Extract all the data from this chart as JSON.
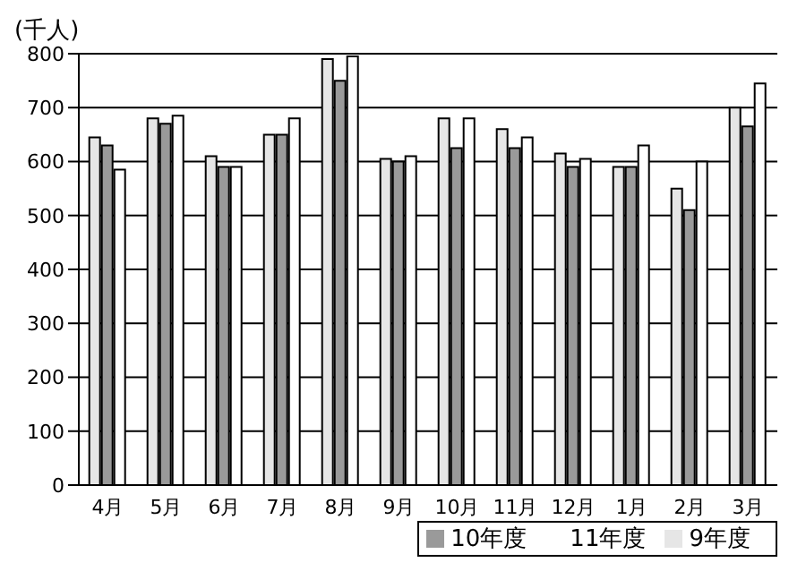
{
  "chart_data": {
    "type": "bar",
    "ylabel": "(千人)",
    "categories": [
      "4月",
      "5月",
      "6月",
      "7月",
      "8月",
      "9月",
      "10月",
      "11月",
      "12月",
      "1月",
      "2月",
      "3月"
    ],
    "series": [
      {
        "name": "9年度",
        "color": "#e6e6e6",
        "values": [
          645,
          680,
          610,
          650,
          790,
          605,
          680,
          660,
          615,
          590,
          550,
          700
        ]
      },
      {
        "name": "10年度",
        "color": "#9a9a9a",
        "values": [
          630,
          670,
          590,
          650,
          750,
          600,
          625,
          625,
          590,
          590,
          510,
          665
        ]
      },
      {
        "name": "11年度",
        "color": "#ffffff",
        "values": [
          585,
          685,
          590,
          680,
          795,
          610,
          680,
          645,
          605,
          630,
          600,
          745
        ]
      }
    ],
    "ylim": [
      0,
      800
    ],
    "yticks": [
      0,
      100,
      200,
      300,
      400,
      500,
      600,
      700,
      800
    ],
    "grid": "y",
    "legend": "bottom right"
  }
}
